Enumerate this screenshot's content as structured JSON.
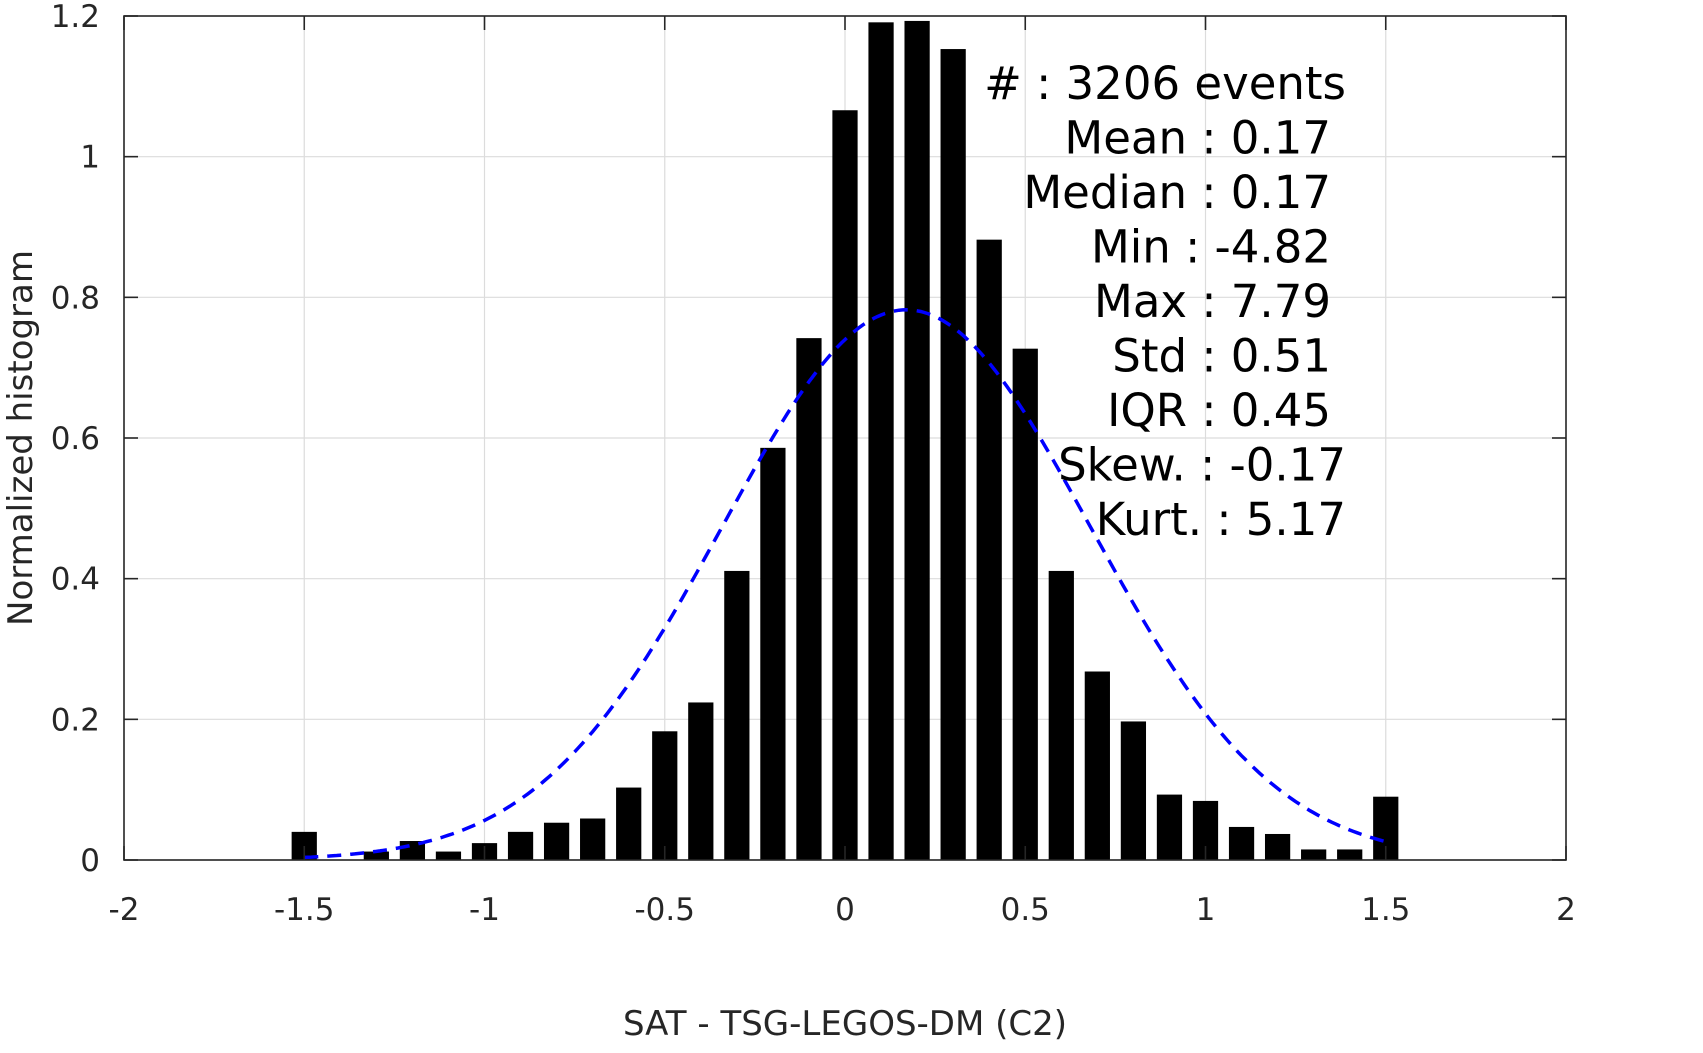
{
  "chart_data": {
    "type": "bar",
    "xlabel": "SAT - TSG-LEGOS-DM (C2)",
    "ylabel": "Normalized histogram",
    "xlim": [
      -2,
      2
    ],
    "ylim": [
      0,
      1.2
    ],
    "xticks": [
      -2,
      -1.5,
      -1,
      -0.5,
      0,
      0.5,
      1,
      1.5,
      2
    ],
    "yticks": [
      0,
      0.2,
      0.4,
      0.6,
      0.8,
      1,
      1.2
    ],
    "xtick_labels": [
      "-2",
      "-1.5",
      "-1",
      "-0.5",
      "0",
      "0.5",
      "1",
      "1.5",
      "2"
    ],
    "ytick_labels": [
      "0",
      "0.2",
      "0.4",
      "0.6",
      "0.8",
      "1",
      "1.2"
    ],
    "grid": true,
    "bar_color": "#000000",
    "bins": [
      -1.5,
      -1.4,
      -1.3,
      -1.2,
      -1.1,
      -1.0,
      -0.9,
      -0.8,
      -0.7,
      -0.6,
      -0.5,
      -0.4,
      -0.3,
      -0.2,
      -0.1,
      0.0,
      0.1,
      0.2,
      0.3,
      0.4,
      0.5,
      0.6,
      0.7,
      0.8,
      0.9,
      1.0,
      1.1,
      1.2,
      1.3,
      1.4,
      1.5
    ],
    "values": [
      0.04,
      0.0,
      0.012,
      0.027,
      0.012,
      0.024,
      0.04,
      0.053,
      0.059,
      0.103,
      0.183,
      0.224,
      0.411,
      0.586,
      0.742,
      1.066,
      1.191,
      1.193,
      1.153,
      0.882,
      0.727,
      0.411,
      0.268,
      0.197,
      0.093,
      0.084,
      0.047,
      0.037,
      0.015,
      0.015,
      0.09
    ],
    "fit_curve": {
      "type": "normal",
      "mean": 0.17,
      "std": 0.51,
      "x_range": [
        -1.5,
        1.5
      ],
      "color": "#0000ff",
      "style": "dashed"
    },
    "annotation": {
      "lines": [
        "#  : 3206 events",
        "Mean : 0.17",
        "Median : 0.17",
        "Min : -4.82",
        "Max : 7.79",
        "Std : 0.51",
        "IQR : 0.45",
        "Skew. : -0.17",
        "Kurt. : 5.17"
      ],
      "placement": "top-right"
    }
  }
}
